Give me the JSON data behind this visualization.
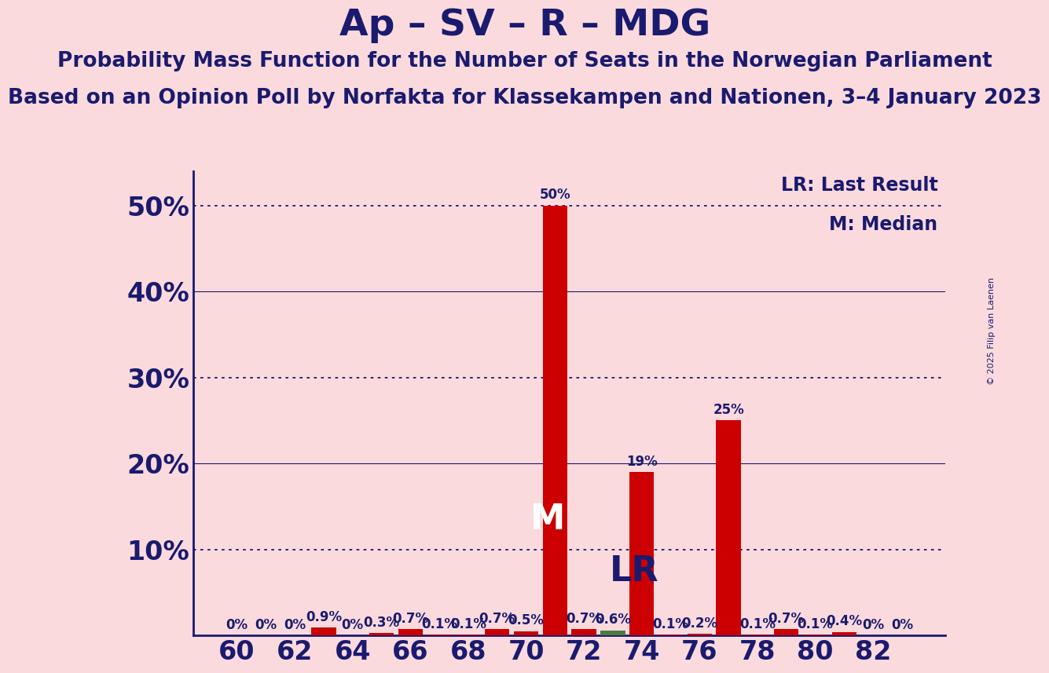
{
  "title": "Ap – SV – R – MDG",
  "subtitle1": "Probability Mass Function for the Number of Seats in the Norwegian Parliament",
  "subtitle2": "Based on an Opinion Poll by Norfakta for Klassekampen and Nationen, 3–4 January 2023",
  "copyright": "© 2025 Filip van Laenen",
  "background_color": "#fadadd",
  "bar_color": "#cc0000",
  "lr_color": "#4a7c3f",
  "text_color": "#1a1a6e",
  "seats": [
    60,
    61,
    62,
    63,
    64,
    65,
    66,
    67,
    68,
    69,
    70,
    71,
    72,
    73,
    74,
    75,
    76,
    77,
    78,
    79,
    80,
    81,
    82,
    83
  ],
  "values": [
    0.0,
    0.0,
    0.0,
    0.9,
    0.0,
    0.3,
    0.7,
    0.1,
    0.1,
    0.7,
    0.5,
    50.0,
    0.7,
    0.6,
    19.0,
    0.1,
    0.2,
    25.0,
    0.1,
    0.7,
    0.1,
    0.4,
    0.0,
    0.0
  ],
  "lr_seat": 73,
  "median_seat": 71,
  "ylim": [
    0,
    54
  ],
  "yticks_solid": [
    20,
    40
  ],
  "yticks_dotted": [
    10,
    30,
    50
  ],
  "ytick_labels": {
    "0": "",
    "10": "10%",
    "20": "20%",
    "30": "30%",
    "40": "40%",
    "50": "50%"
  },
  "xtick_positions": [
    60,
    62,
    64,
    66,
    68,
    70,
    72,
    74,
    76,
    78,
    80,
    82
  ],
  "gridline_color": "#1a1a6e",
  "lr_label": "LR",
  "median_label": "M",
  "lr_legend": "LR: Last Result",
  "median_legend": "M: Median",
  "title_fontsize": 34,
  "subtitle1_fontsize": 19,
  "subtitle2_fontsize": 19,
  "axis_tick_fontsize": 24,
  "bar_label_fontsize": 12,
  "legend_fontsize": 17,
  "m_label_fontsize": 32,
  "lr_label_fontsize": 32,
  "copyright_fontsize": 8
}
